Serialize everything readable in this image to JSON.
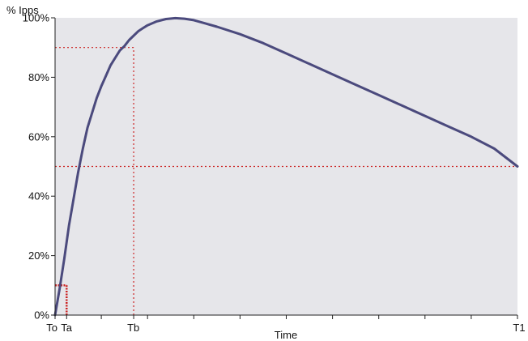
{
  "chart_data": {
    "type": "line",
    "title": "",
    "ylabel": "% Ipps",
    "xlabel": "Time",
    "x_tick_labels": [
      {
        "label": "To",
        "x": 0
      },
      {
        "label": "Ta",
        "x": 0.025
      },
      {
        "label": "Tb",
        "x": 0.17
      },
      {
        "label": "T1",
        "x": 1
      }
    ],
    "xlim": [
      0,
      1
    ],
    "ylim": [
      0,
      100
    ],
    "y_ticks": [
      {
        "label": "0%",
        "value": 0
      },
      {
        "label": "20%",
        "value": 20
      },
      {
        "label": "40%",
        "value": 40
      },
      {
        "label": "60%",
        "value": 60
      },
      {
        "label": "80%",
        "value": 80
      },
      {
        "label": "100%",
        "value": 100
      }
    ],
    "series": [
      {
        "color": "#4b4a7d",
        "x": [
          0,
          0.01,
          0.02,
          0.03,
          0.04,
          0.05,
          0.06,
          0.07,
          0.08,
          0.09,
          0.1,
          0.11,
          0.12,
          0.13,
          0.14,
          0.15,
          0.16,
          0.17,
          0.18,
          0.19,
          0.2,
          0.22,
          0.24,
          0.26,
          0.28,
          0.3,
          0.35,
          0.4,
          0.45,
          0.5,
          0.55,
          0.6,
          0.65,
          0.7,
          0.75,
          0.8,
          0.85,
          0.9,
          0.95,
          1.0
        ],
        "y": [
          0,
          9,
          19,
          30,
          39,
          48,
          56,
          63,
          68,
          73,
          77,
          80.5,
          84,
          86.5,
          89,
          90.5,
          92.5,
          94,
          95.5,
          96.5,
          97.5,
          98.8,
          99.6,
          99.9,
          99.7,
          99.2,
          97,
          94.5,
          91.5,
          88,
          84.5,
          81,
          77.5,
          74,
          70.5,
          67,
          63.5,
          60,
          56,
          50
        ]
      }
    ],
    "reference_lines": [
      {
        "orientation": "horizontal",
        "value": 90,
        "x_from": 0,
        "x_to": 0.17,
        "color": "#cc2222"
      },
      {
        "orientation": "vertical",
        "value": 0.17,
        "y_from": 0,
        "y_to": 90,
        "color": "#cc2222"
      },
      {
        "orientation": "horizontal",
        "value": 50,
        "x_from": 0,
        "x_to": 1,
        "color": "#cc2222"
      },
      {
        "orientation": "horizontal",
        "value": 10,
        "x_from": 0,
        "x_to": 0.025,
        "color": "#cc2222"
      },
      {
        "orientation": "vertical",
        "value": 0.025,
        "y_from": 0,
        "y_to": 10,
        "color": "#cc2222"
      }
    ],
    "minor_x_ticks": [
      0.1,
      0.2,
      0.3,
      0.4,
      0.5,
      0.6,
      0.7,
      0.8,
      0.9
    ],
    "plot_background": "#e6e6ea",
    "grid": false,
    "legend": "none"
  }
}
